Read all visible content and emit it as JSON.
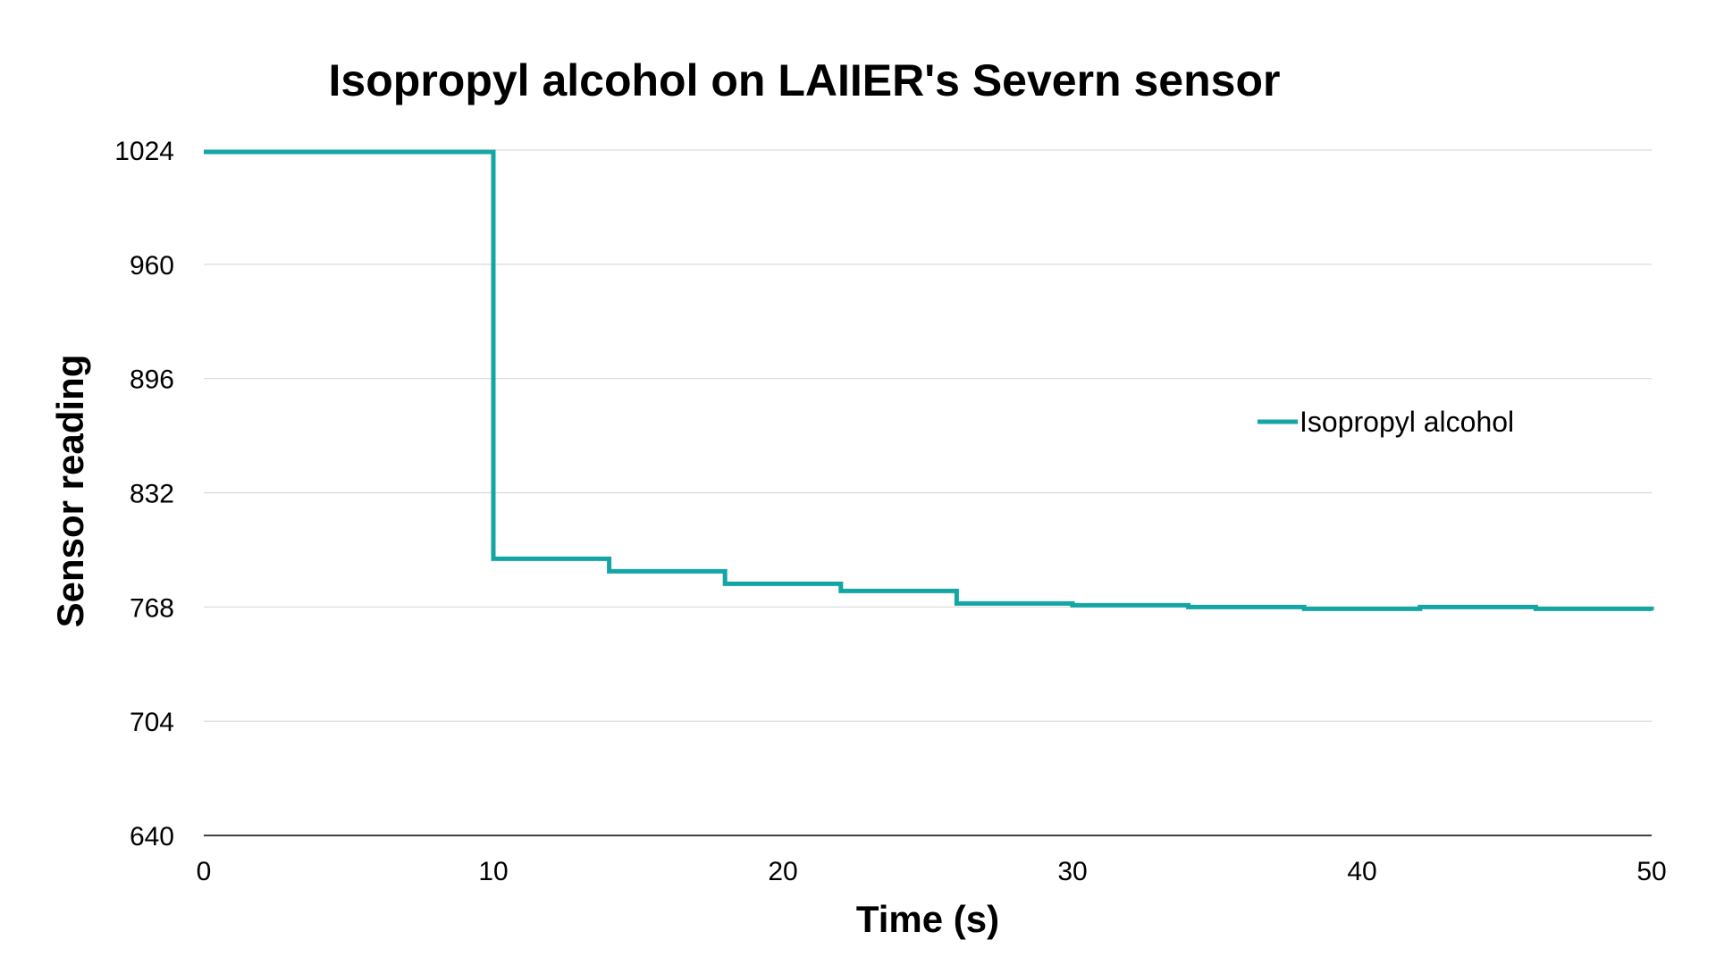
{
  "chart_data": {
    "type": "line",
    "step": true,
    "title": "Isopropyl alcohol on LAIIER's Severn sensor",
    "xlabel": "Time (s)",
    "ylabel": "Sensor reading",
    "xlim": [
      0,
      50
    ],
    "ylim": [
      640,
      1024
    ],
    "xticks": [
      "0",
      "10",
      "20",
      "30",
      "40",
      "50"
    ],
    "yticks": [
      "640",
      "704",
      "768",
      "832",
      "896",
      "960",
      "1024"
    ],
    "grid": true,
    "legend_position": "right",
    "series": [
      {
        "name": "Isopropyl alcohol",
        "color": "#14a5a5",
        "x": [
          0,
          10,
          14,
          18,
          22,
          26,
          30,
          34,
          38,
          42,
          46,
          50
        ],
        "y": [
          1023,
          795,
          788,
          781,
          777,
          770,
          769,
          768,
          767,
          768,
          767,
          766
        ]
      }
    ]
  }
}
